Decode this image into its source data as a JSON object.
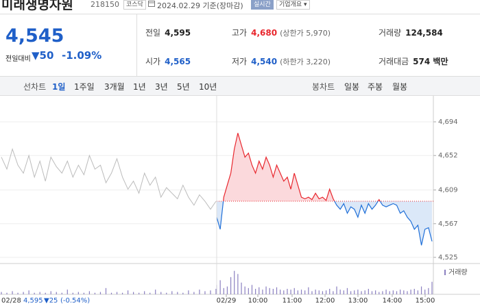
{
  "header": {
    "name": "미래생명자원",
    "code": "218150",
    "market": "코스닥",
    "date": "2024.02.29 기준(장마감)",
    "realtime": "실시간",
    "overview": "기업개요"
  },
  "quote": {
    "price": "4,545",
    "change_label": "전일대비",
    "change": "▼50",
    "change_pct": "-1.09%",
    "rows": [
      [
        {
          "label": "전일",
          "value": "4,595"
        },
        {
          "label": "고가",
          "value": "4,680",
          "note": "(상한가 5,970)"
        },
        {
          "label": "거래량",
          "value": "124,584"
        }
      ],
      [
        {
          "label": "시가",
          "value": "4,565"
        },
        {
          "label": "저가",
          "value": "4,540",
          "note": "(하한가 3,220)"
        },
        {
          "label": "거래대금",
          "value": "574 백만"
        }
      ]
    ]
  },
  "tabs": {
    "line_label": "선차트",
    "line": [
      "1일",
      "1주일",
      "3개월",
      "1년",
      "3년",
      "5년",
      "10년"
    ],
    "candle_label": "봉차트",
    "candle": [
      "일봉",
      "주봉",
      "월봉"
    ]
  },
  "chart_data": {
    "type": "line",
    "base": 4595,
    "ylim": [
      4525,
      4694
    ],
    "yticks": [
      {
        "value": 4694,
        "label": "4,694"
      },
      {
        "value": 4652,
        "label": "4,652"
      },
      {
        "value": 4609,
        "label": "4,609"
      },
      {
        "value": 4567,
        "label": "4,567"
      },
      {
        "value": 4525,
        "label": "4,525"
      }
    ],
    "xticks": [
      "02/29",
      "10:00",
      "11:00",
      "12:00",
      "13:00",
      "14:00",
      "15:00"
    ],
    "series": [
      {
        "name": "02/28",
        "color": "#bbbbbb",
        "values": [
          4650,
          4635,
          4660,
          4640,
          4630,
          4652,
          4625,
          4645,
          4620,
          4650,
          4638,
          4630,
          4645,
          4625,
          4640,
          4628,
          4652,
          4635,
          4640,
          4618,
          4630,
          4648,
          4625,
          4610,
          4620,
          4605,
          4630,
          4615,
          4625,
          4600,
          4612,
          4605,
          4598,
          4615,
          4600,
          4590,
          4603,
          4595,
          4585,
          4595
        ],
        "volume": [
          3,
          2,
          4,
          2,
          3,
          5,
          2,
          3,
          2,
          4,
          3,
          2,
          6,
          2,
          3,
          2,
          4,
          2,
          3,
          8,
          2,
          3,
          2,
          5,
          3,
          2,
          4,
          2,
          6,
          3,
          2,
          4,
          3,
          2,
          5,
          3,
          6,
          4,
          5,
          7
        ]
      },
      {
        "name": "02/29",
        "color": "#e8262d",
        "color_down": "#1f6fd8",
        "values": [
          4575,
          4560,
          4600,
          4615,
          4630,
          4660,
          4680,
          4665,
          4650,
          4655,
          4640,
          4630,
          4645,
          4635,
          4650,
          4640,
          4625,
          4640,
          4630,
          4620,
          4625,
          4610,
          4630,
          4615,
          4600,
          4598,
          4600,
          4597,
          4605,
          4598,
          4600,
          4596,
          4610,
          4598,
          4590,
          4585,
          4592,
          4580,
          4588,
          4585,
          4575,
          4590,
          4580,
          4592,
          4585,
          4590,
          4597,
          4590,
          4588,
          4590,
          4592,
          4590,
          4580,
          4583,
          4575,
          4570,
          4560,
          4565,
          4540,
          4560,
          4562,
          4545
        ],
        "volume": [
          12,
          18,
          8,
          10,
          22,
          30,
          26,
          15,
          10,
          8,
          12,
          7,
          9,
          6,
          10,
          8,
          7,
          9,
          6,
          5,
          7,
          6,
          8,
          5,
          6,
          5,
          9,
          4,
          6,
          5,
          4,
          5,
          7,
          4,
          10,
          6,
          5,
          8,
          4,
          5,
          6,
          4,
          5,
          7,
          4,
          5,
          3,
          4,
          6,
          4,
          5,
          4,
          6,
          5,
          4,
          6,
          7,
          5,
          10,
          6,
          8,
          16
        ]
      }
    ],
    "volume_label": "거래량",
    "volume_ylim": [
      0,
      35
    ],
    "legend": {
      "date": "02/28",
      "price": "4,595",
      "change": "▼25",
      "pct": "(-0.54%)"
    }
  }
}
